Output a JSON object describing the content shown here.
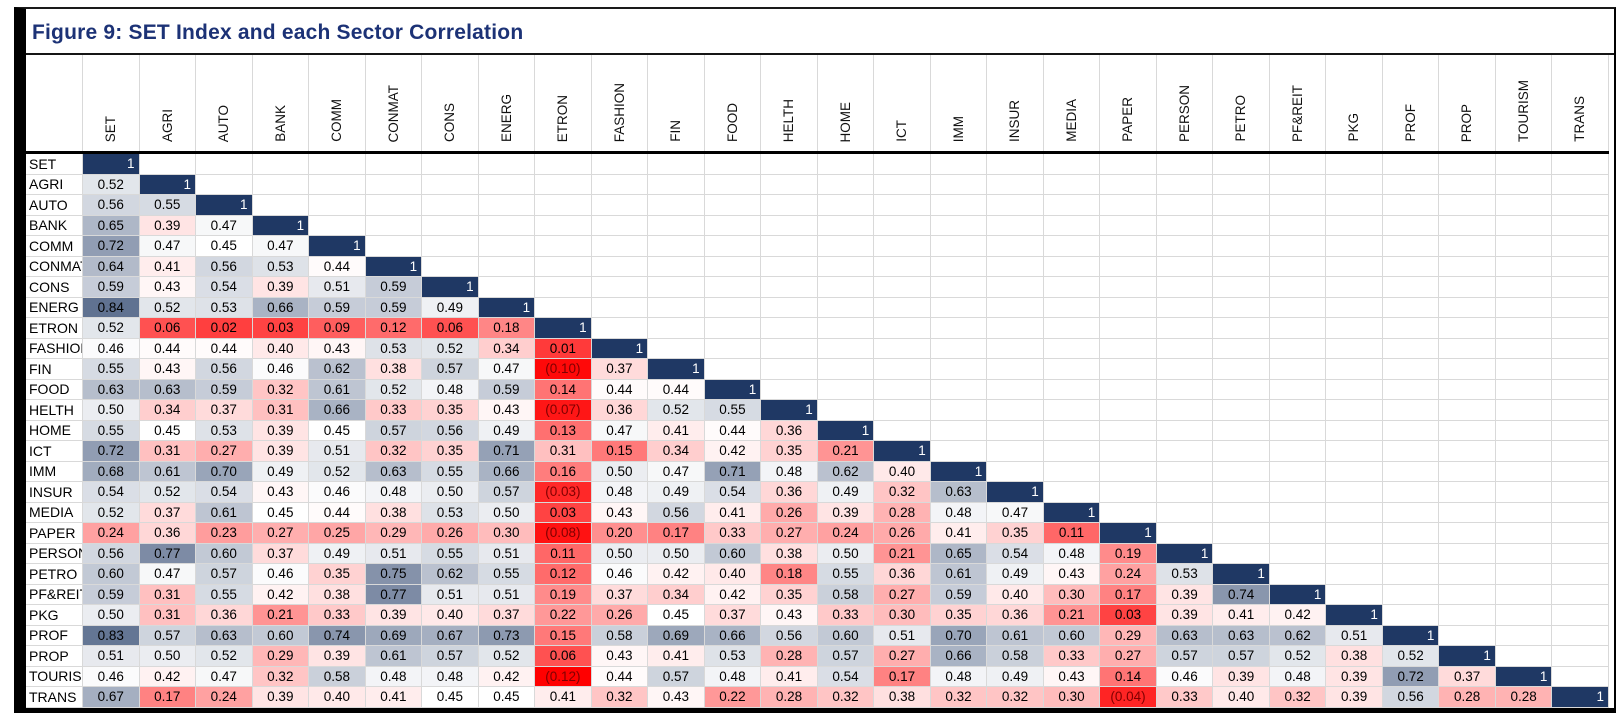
{
  "figure": {
    "title": "Figure 9: SET Index and each Sector Correlation"
  },
  "colors": {
    "title_text": "#1c3276",
    "scale_max_navy": "#1F3864",
    "scale_mid_white": "#FFFFFF",
    "scale_min_red": "#FF0000",
    "scale_mid_value": 0.45,
    "scale_min_value": -0.12,
    "negative_text": "#7f0000",
    "gridline": "#D9D9D9"
  },
  "chart_data": {
    "type": "heatmap",
    "subtype": "lower-triangle-correlation-matrix",
    "title": "Figure 9: SET Index and each Sector Correlation",
    "legend_position": "none",
    "grid": true,
    "value_range": [
      -0.12,
      1
    ],
    "categories": [
      "SET",
      "AGRI",
      "AUTO",
      "BANK",
      "COMM",
      "CONMAT",
      "CONS",
      "ENERG",
      "ETRON",
      "FASHION",
      "FIN",
      "FOOD",
      "HELTH",
      "HOME",
      "ICT",
      "IMM",
      "INSUR",
      "MEDIA",
      "PAPER",
      "PERSON",
      "PETRO",
      "PF&REIT",
      "PKG",
      "PROF",
      "PROP",
      "TOURISM",
      "TRANS"
    ],
    "rows": [
      {
        "label": "SET",
        "values": [
          1
        ]
      },
      {
        "label": "AGRI",
        "values": [
          0.52,
          1
        ]
      },
      {
        "label": "AUTO",
        "values": [
          0.56,
          0.55,
          1
        ]
      },
      {
        "label": "BANK",
        "values": [
          0.65,
          0.39,
          0.47,
          1
        ]
      },
      {
        "label": "COMM",
        "values": [
          0.72,
          0.47,
          0.45,
          0.47,
          1
        ]
      },
      {
        "label": "CONMAT",
        "values": [
          0.64,
          0.41,
          0.56,
          0.53,
          0.44,
          1
        ]
      },
      {
        "label": "CONS",
        "values": [
          0.59,
          0.43,
          0.54,
          0.39,
          0.51,
          0.59,
          1
        ]
      },
      {
        "label": "ENERG",
        "values": [
          0.84,
          0.52,
          0.53,
          0.66,
          0.59,
          0.59,
          0.49,
          1
        ]
      },
      {
        "label": "ETRON",
        "values": [
          0.52,
          0.06,
          0.02,
          0.03,
          0.09,
          0.12,
          0.06,
          0.18,
          1
        ]
      },
      {
        "label": "FASHION",
        "values": [
          0.46,
          0.44,
          0.44,
          0.4,
          0.43,
          0.53,
          0.52,
          0.34,
          0.01,
          1
        ]
      },
      {
        "label": "FIN",
        "values": [
          0.55,
          0.43,
          0.56,
          0.46,
          0.62,
          0.38,
          0.57,
          0.47,
          -0.1,
          0.37,
          1
        ]
      },
      {
        "label": "FOOD",
        "values": [
          0.63,
          0.63,
          0.59,
          0.32,
          0.61,
          0.52,
          0.48,
          0.59,
          0.14,
          0.44,
          0.44,
          1
        ]
      },
      {
        "label": "HELTH",
        "values": [
          0.5,
          0.34,
          0.37,
          0.31,
          0.66,
          0.33,
          0.35,
          0.43,
          -0.07,
          0.36,
          0.52,
          0.55,
          1
        ]
      },
      {
        "label": "HOME",
        "values": [
          0.55,
          0.45,
          0.53,
          0.39,
          0.45,
          0.57,
          0.56,
          0.49,
          0.13,
          0.47,
          0.41,
          0.44,
          0.36,
          1
        ]
      },
      {
        "label": "ICT",
        "values": [
          0.72,
          0.31,
          0.27,
          0.39,
          0.51,
          0.32,
          0.35,
          0.71,
          0.31,
          0.15,
          0.34,
          0.42,
          0.35,
          0.21,
          1
        ]
      },
      {
        "label": "IMM",
        "values": [
          0.68,
          0.61,
          0.7,
          0.49,
          0.52,
          0.63,
          0.55,
          0.66,
          0.16,
          0.5,
          0.47,
          0.71,
          0.48,
          0.62,
          0.4,
          1
        ]
      },
      {
        "label": "INSUR",
        "values": [
          0.54,
          0.52,
          0.54,
          0.43,
          0.46,
          0.48,
          0.5,
          0.57,
          -0.03,
          0.48,
          0.49,
          0.54,
          0.36,
          0.49,
          0.32,
          0.63,
          1
        ]
      },
      {
        "label": "MEDIA",
        "values": [
          0.52,
          0.37,
          0.61,
          0.45,
          0.44,
          0.38,
          0.53,
          0.5,
          0.03,
          0.43,
          0.56,
          0.41,
          0.26,
          0.39,
          0.28,
          0.48,
          0.47,
          1
        ]
      },
      {
        "label": "PAPER",
        "values": [
          0.24,
          0.36,
          0.23,
          0.27,
          0.25,
          0.29,
          0.26,
          0.3,
          -0.08,
          0.2,
          0.17,
          0.33,
          0.27,
          0.24,
          0.26,
          0.41,
          0.35,
          0.11,
          1
        ]
      },
      {
        "label": "PERSON",
        "values": [
          0.56,
          0.77,
          0.6,
          0.37,
          0.49,
          0.51,
          0.55,
          0.51,
          0.11,
          0.5,
          0.5,
          0.6,
          0.38,
          0.5,
          0.21,
          0.65,
          0.54,
          0.48,
          0.19,
          1
        ]
      },
      {
        "label": "PETRO",
        "values": [
          0.6,
          0.47,
          0.57,
          0.46,
          0.35,
          0.75,
          0.62,
          0.55,
          0.12,
          0.46,
          0.42,
          0.4,
          0.18,
          0.55,
          0.36,
          0.61,
          0.49,
          0.43,
          0.24,
          0.53,
          1
        ]
      },
      {
        "label": "PF&REIT",
        "values": [
          0.59,
          0.31,
          0.55,
          0.42,
          0.38,
          0.77,
          0.51,
          0.51,
          0.19,
          0.37,
          0.34,
          0.42,
          0.35,
          0.58,
          0.27,
          0.59,
          0.4,
          0.3,
          0.17,
          0.39,
          0.74,
          1
        ]
      },
      {
        "label": "PKG",
        "values": [
          0.5,
          0.31,
          0.36,
          0.21,
          0.33,
          0.39,
          0.4,
          0.37,
          0.22,
          0.26,
          0.45,
          0.37,
          0.43,
          0.33,
          0.3,
          0.35,
          0.36,
          0.21,
          0.03,
          0.39,
          0.41,
          0.42,
          1
        ]
      },
      {
        "label": "PROF",
        "values": [
          0.83,
          0.57,
          0.63,
          0.6,
          0.74,
          0.69,
          0.67,
          0.73,
          0.15,
          0.58,
          0.69,
          0.66,
          0.56,
          0.6,
          0.51,
          0.7,
          0.61,
          0.6,
          0.29,
          0.63,
          0.63,
          0.62,
          0.51,
          1
        ]
      },
      {
        "label": "PROP",
        "values": [
          0.51,
          0.5,
          0.52,
          0.29,
          0.39,
          0.61,
          0.57,
          0.52,
          0.06,
          0.43,
          0.41,
          0.53,
          0.28,
          0.57,
          0.27,
          0.66,
          0.58,
          0.33,
          0.27,
          0.57,
          0.57,
          0.52,
          0.38,
          0.52,
          1
        ]
      },
      {
        "label": "TOURISM",
        "values": [
          0.46,
          0.42,
          0.47,
          0.32,
          0.58,
          0.48,
          0.48,
          0.42,
          -0.12,
          0.44,
          0.57,
          0.48,
          0.41,
          0.54,
          0.17,
          0.48,
          0.49,
          0.43,
          0.14,
          0.46,
          0.39,
          0.48,
          0.39,
          0.72,
          0.37,
          1
        ]
      },
      {
        "label": "TRANS",
        "values": [
          0.67,
          0.17,
          0.24,
          0.39,
          0.4,
          0.41,
          0.45,
          0.45,
          0.41,
          0.32,
          0.43,
          0.22,
          0.28,
          0.32,
          0.38,
          0.32,
          0.32,
          0.3,
          -0.04,
          0.33,
          0.4,
          0.32,
          0.39,
          0.56,
          0.28,
          0.28,
          1
        ]
      }
    ],
    "negative_number_format": "parentheses-red"
  }
}
